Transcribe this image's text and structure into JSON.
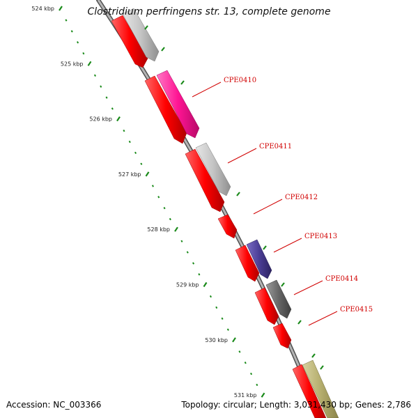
{
  "title": "Clostridium perfringens str. 13, complete genome",
  "accession_text": "Accession: NC_003366",
  "topology_text": "Topology: circular; Length: 3,031,430 bp; Genes: 2,786",
  "colors": {
    "red": "#ff0000",
    "pink": "#ff1493",
    "gray": "#c0c0c0",
    "darkgray": "#666666",
    "purple": "#4b3e96",
    "olive": "#b5ae6e",
    "tick": "#1a8a1a",
    "label": "#d10000",
    "backbone": "#808080"
  },
  "scale_ticks": [
    {
      "label": "524 kbp",
      "kbp": 524
    },
    {
      "label": "525 kbp",
      "kbp": 525
    },
    {
      "label": "526 kbp",
      "kbp": 526
    },
    {
      "label": "527 kbp",
      "kbp": 527
    },
    {
      "label": "528 kbp",
      "kbp": 528
    },
    {
      "label": "529 kbp",
      "kbp": 529
    },
    {
      "label": "530 kbp",
      "kbp": 530
    },
    {
      "label": "531 kbp",
      "kbp": 531
    }
  ],
  "genes": [
    {
      "name": "CPE0410",
      "start_kbp": 525.25,
      "end_kbp": 526.3
    },
    {
      "name": "CPE0411",
      "start_kbp": 526.4,
      "end_kbp": 527.5
    },
    {
      "name": "CPE0412",
      "start_kbp": 527.9,
      "end_kbp": 528.2
    },
    {
      "name": "CPE0413",
      "start_kbp": 528.45,
      "end_kbp": 528.9
    },
    {
      "name": "CPE0414",
      "start_kbp": 529.1,
      "end_kbp": 529.6
    },
    {
      "name": "CPE0415",
      "start_kbp": 529.65,
      "end_kbp": 529.95
    }
  ]
}
